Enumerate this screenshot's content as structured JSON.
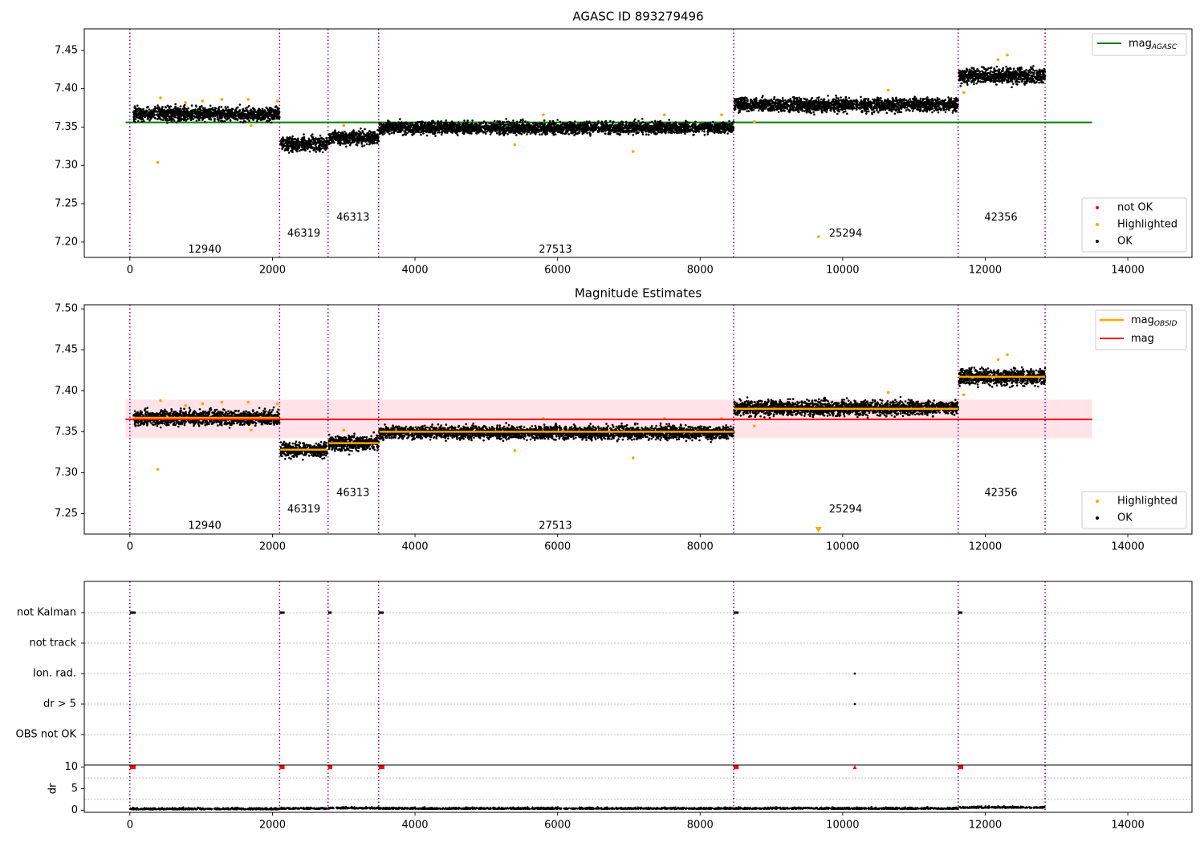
{
  "chart_data": [
    {
      "type": "scatter",
      "title": "AGASC ID 893279496",
      "xlim": [
        -640,
        14900
      ],
      "ylim": [
        7.18,
        7.478
      ],
      "xticks": [
        0,
        2000,
        4000,
        6000,
        8000,
        10000,
        12000,
        14000
      ],
      "yticks": [
        7.2,
        7.25,
        7.3,
        7.35,
        7.4,
        7.45
      ],
      "ytick_labels": [
        "7.20",
        "7.25",
        "7.30",
        "7.35",
        "7.40",
        "7.45"
      ],
      "obs_boundaries": [
        0,
        2100,
        2780,
        3490,
        8470,
        11620,
        12840
      ],
      "obs_labels": [
        {
          "text": "12940",
          "x": 1050,
          "y": 7.19
        },
        {
          "text": "46319",
          "x": 2440,
          "y": 7.211
        },
        {
          "text": "46313",
          "x": 3130,
          "y": 7.232
        },
        {
          "text": "27513",
          "x": 5970,
          "y": 7.19
        },
        {
          "text": "25294",
          "x": 10040,
          "y": 7.211
        },
        {
          "text": "42356",
          "x": 12220,
          "y": 7.232
        }
      ],
      "ok_bands": [
        {
          "x0": 50,
          "x1": 2100,
          "mean": 7.367,
          "spread": 0.008
        },
        {
          "x0": 2110,
          "x1": 2770,
          "mean": 7.328,
          "spread": 0.008
        },
        {
          "x0": 2790,
          "x1": 3490,
          "mean": 7.336,
          "spread": 0.008
        },
        {
          "x0": 3500,
          "x1": 8470,
          "mean": 7.349,
          "spread": 0.007
        },
        {
          "x0": 8480,
          "x1": 11620,
          "mean": 7.379,
          "spread": 0.008
        },
        {
          "x0": 11630,
          "x1": 12840,
          "mean": 7.417,
          "spread": 0.009
        }
      ],
      "highlighted_points": [
        {
          "x": 390,
          "y": 7.304
        },
        {
          "x": 430,
          "y": 7.388
        },
        {
          "x": 780,
          "y": 7.382
        },
        {
          "x": 1020,
          "y": 7.384
        },
        {
          "x": 1290,
          "y": 7.386
        },
        {
          "x": 1660,
          "y": 7.386
        },
        {
          "x": 1700,
          "y": 7.352
        },
        {
          "x": 2070,
          "y": 7.384
        },
        {
          "x": 3000,
          "y": 7.352
        },
        {
          "x": 5400,
          "y": 7.327
        },
        {
          "x": 5800,
          "y": 7.366
        },
        {
          "x": 7060,
          "y": 7.318
        },
        {
          "x": 7500,
          "y": 7.366
        },
        {
          "x": 8300,
          "y": 7.366
        },
        {
          "x": 8760,
          "y": 7.357
        },
        {
          "x": 9660,
          "y": 7.207
        },
        {
          "x": 10640,
          "y": 7.398
        },
        {
          "x": 11700,
          "y": 7.395
        },
        {
          "x": 12180,
          "y": 7.438
        },
        {
          "x": 12310,
          "y": 7.444
        }
      ],
      "hline": {
        "label": "mag_AGASC",
        "y": 7.356,
        "x0": -60,
        "x1": 13500,
        "color": "#008000"
      },
      "legend_upper": [
        {
          "label": "mag",
          "sub": "AGASC",
          "color": "#008000"
        }
      ],
      "legend_lower": [
        {
          "label": "not OK",
          "color": "#ff0000"
        },
        {
          "label": "Highlighted",
          "color": "#ffa500"
        },
        {
          "label": "OK",
          "color": "#000000"
        }
      ],
      "legend_placement": [
        "upper right",
        "lower right"
      ]
    },
    {
      "type": "scatter",
      "title": "Magnitude Estimates",
      "xlim": [
        -640,
        14900
      ],
      "ylim": [
        7.225,
        7.505
      ],
      "xticks": [
        0,
        2000,
        4000,
        6000,
        8000,
        10000,
        12000,
        14000
      ],
      "yticks": [
        7.25,
        7.3,
        7.35,
        7.4,
        7.45,
        7.5
      ],
      "ytick_labels": [
        "7.25",
        "7.30",
        "7.35",
        "7.40",
        "7.45",
        "7.50"
      ],
      "obs_boundaries": [
        0,
        2100,
        2780,
        3490,
        8470,
        11620,
        12840
      ],
      "obs_labels": [
        {
          "text": "12940",
          "x": 1050,
          "y": 7.235
        },
        {
          "text": "46319",
          "x": 2440,
          "y": 7.255
        },
        {
          "text": "46313",
          "x": 3130,
          "y": 7.275
        },
        {
          "text": "27513",
          "x": 5970,
          "y": 7.235
        },
        {
          "text": "25294",
          "x": 10040,
          "y": 7.255
        },
        {
          "text": "42356",
          "x": 12220,
          "y": 7.275
        }
      ],
      "ok_bands": [
        {
          "x0": 50,
          "x1": 2100,
          "mean": 7.367,
          "spread": 0.008
        },
        {
          "x0": 2110,
          "x1": 2770,
          "mean": 7.328,
          "spread": 0.008
        },
        {
          "x0": 2790,
          "x1": 3490,
          "mean": 7.336,
          "spread": 0.008
        },
        {
          "x0": 3500,
          "x1": 8470,
          "mean": 7.349,
          "spread": 0.007
        },
        {
          "x0": 8480,
          "x1": 11620,
          "mean": 7.379,
          "spread": 0.008
        },
        {
          "x0": 11630,
          "x1": 12840,
          "mean": 7.417,
          "spread": 0.009
        }
      ],
      "highlighted_points": [
        {
          "x": 390,
          "y": 7.304
        },
        {
          "x": 430,
          "y": 7.388
        },
        {
          "x": 780,
          "y": 7.382
        },
        {
          "x": 1020,
          "y": 7.384
        },
        {
          "x": 1290,
          "y": 7.386
        },
        {
          "x": 1660,
          "y": 7.386
        },
        {
          "x": 1700,
          "y": 7.352
        },
        {
          "x": 2070,
          "y": 7.384
        },
        {
          "x": 3000,
          "y": 7.352
        },
        {
          "x": 5400,
          "y": 7.327
        },
        {
          "x": 5800,
          "y": 7.366
        },
        {
          "x": 7060,
          "y": 7.318
        },
        {
          "x": 7500,
          "y": 7.366
        },
        {
          "x": 8300,
          "y": 7.366
        },
        {
          "x": 8760,
          "y": 7.357
        },
        {
          "x": 10640,
          "y": 7.398
        },
        {
          "x": 11700,
          "y": 7.395
        },
        {
          "x": 12180,
          "y": 7.438
        },
        {
          "x": 12310,
          "y": 7.444
        }
      ],
      "offscale_marker": {
        "x": 9660,
        "color": "#ffa500"
      },
      "mag_obsid_segments": [
        {
          "x0": 50,
          "x1": 2100,
          "y": 7.367
        },
        {
          "x0": 2110,
          "x1": 2770,
          "y": 7.328
        },
        {
          "x0": 2790,
          "x1": 3490,
          "y": 7.336
        },
        {
          "x0": 3500,
          "x1": 8470,
          "y": 7.35
        },
        {
          "x0": 8480,
          "x1": 11620,
          "y": 7.378
        },
        {
          "x0": 11630,
          "x1": 12840,
          "y": 7.417
        }
      ],
      "mag": {
        "y": 7.365,
        "x0": -60,
        "x1": 13500,
        "color": "#ff0000"
      },
      "mag_band": {
        "y0": 7.342,
        "y1": 7.389,
        "x0": -60,
        "x1": 13500,
        "color": "#ffc0cb"
      },
      "legend_upper": [
        {
          "label": "mag",
          "sub": "OBSID",
          "color": "#ffa500"
        },
        {
          "label": "mag",
          "sub": "",
          "color": "#ff0000"
        }
      ],
      "legend_lower": [
        {
          "label": "Highlighted",
          "color": "#ffa500"
        },
        {
          "label": "OK",
          "color": "#000000"
        }
      ],
      "legend_placement": [
        "upper right",
        "lower right"
      ]
    },
    {
      "type": "scatter",
      "title": "",
      "xlim": [
        -640,
        14900
      ],
      "flag_categories": [
        "not Kalman",
        "not track",
        "Ion. rad.",
        "dr > 5",
        "OBS not OK"
      ],
      "flag_events": {
        "not Kalman": [
          [
            0,
            80
          ],
          [
            2100,
            2170
          ],
          [
            2780,
            2830
          ],
          [
            3490,
            3560
          ],
          [
            8470,
            8540
          ],
          [
            11620,
            11680
          ]
        ],
        "not track": [],
        "Ion. rad.": [
          [
            10170,
            10170
          ]
        ],
        "dr > 5": [
          [
            10170,
            10170
          ]
        ],
        "OBS not OK": []
      },
      "ylabel": "dr",
      "dr_ylim": [
        -0.5,
        10.5
      ],
      "dr_yticks": [
        0,
        5,
        10
      ],
      "dr_large_markers": [
        [
          0,
          80
        ],
        [
          2100,
          2170
        ],
        [
          2780,
          2840
        ],
        [
          3490,
          3570
        ],
        [
          8470,
          8540
        ],
        [
          10170,
          10170
        ],
        [
          11620,
          11690
        ]
      ],
      "dr_bands": [
        {
          "x0": 0,
          "x1": 2100,
          "mean": 0.15
        },
        {
          "x0": 2110,
          "x1": 2770,
          "mean": 0.25
        },
        {
          "x0": 2790,
          "x1": 3490,
          "mean": 0.35
        },
        {
          "x0": 3500,
          "x1": 8470,
          "mean": 0.25
        },
        {
          "x0": 8480,
          "x1": 11620,
          "mean": 0.25
        },
        {
          "x0": 11630,
          "x1": 12840,
          "mean": 0.5
        }
      ],
      "obs_boundaries": [
        0,
        2100,
        2780,
        3490,
        8470,
        11620,
        12840
      ],
      "xticks": [
        0,
        2000,
        4000,
        6000,
        8000,
        10000,
        12000,
        14000
      ]
    }
  ]
}
